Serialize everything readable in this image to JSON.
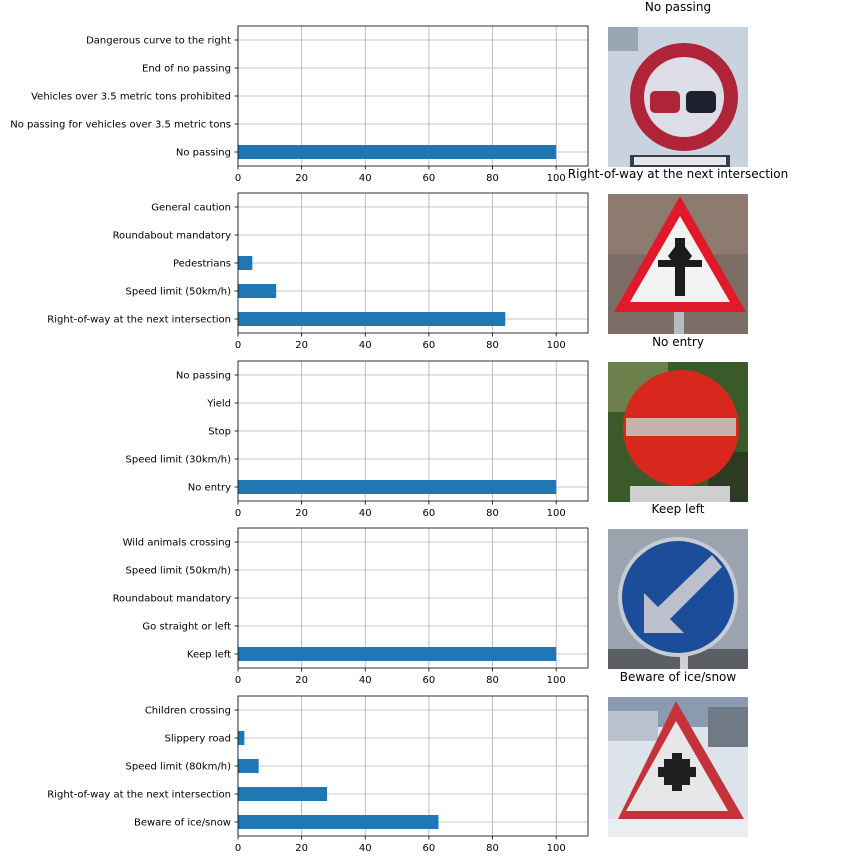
{
  "chart_data": [
    {
      "type": "bar",
      "orientation": "horizontal",
      "title": "No passing",
      "categories": [
        "No passing",
        "No passing for vehicles over 3.5 metric tons",
        "Vehicles over 3.5 metric tons prohibited",
        "End of no passing",
        "Dangerous curve to the right"
      ],
      "values": [
        100,
        0,
        0,
        0,
        0
      ],
      "xlim": [
        0,
        110
      ],
      "xticks": [
        "0",
        "20",
        "40",
        "60",
        "80",
        "100"
      ],
      "grid": true,
      "bar_color": "#1f77b4",
      "sign_icon": "no-passing-sign"
    },
    {
      "type": "bar",
      "orientation": "horizontal",
      "title": "Right-of-way at the next intersection",
      "categories": [
        "Right-of-way at the next intersection",
        "Speed limit (50km/h)",
        "Pedestrians",
        "Roundabout mandatory",
        "General caution"
      ],
      "values": [
        84,
        12,
        4.5,
        0,
        0
      ],
      "xlim": [
        0,
        110
      ],
      "xticks": [
        "0",
        "20",
        "40",
        "60",
        "80",
        "100"
      ],
      "grid": true,
      "bar_color": "#1f77b4",
      "sign_icon": "right-of-way-sign"
    },
    {
      "type": "bar",
      "orientation": "horizontal",
      "title": "No entry",
      "categories": [
        "No entry",
        "Speed limit (30km/h)",
        "Stop",
        "Yield",
        "No passing"
      ],
      "values": [
        100,
        0,
        0,
        0,
        0
      ],
      "xlim": [
        0,
        110
      ],
      "xticks": [
        "0",
        "20",
        "40",
        "60",
        "80",
        "100"
      ],
      "grid": true,
      "bar_color": "#1f77b4",
      "sign_icon": "no-entry-sign"
    },
    {
      "type": "bar",
      "orientation": "horizontal",
      "title": "Keep left",
      "categories": [
        "Keep left",
        "Go straight or left",
        "Roundabout mandatory",
        "Speed limit (50km/h)",
        "Wild animals crossing"
      ],
      "values": [
        100,
        0,
        0,
        0,
        0
      ],
      "xlim": [
        0,
        110
      ],
      "xticks": [
        "0",
        "20",
        "40",
        "60",
        "80",
        "100"
      ],
      "grid": true,
      "bar_color": "#1f77b4",
      "sign_icon": "keep-left-sign"
    },
    {
      "type": "bar",
      "orientation": "horizontal",
      "title": "Beware of ice/snow",
      "categories": [
        "Beware of ice/snow",
        "Right-of-way at the next intersection",
        "Speed limit (80km/h)",
        "Slippery road",
        "Children crossing"
      ],
      "values": [
        63,
        28,
        6.5,
        2,
        0
      ],
      "xlim": [
        0,
        110
      ],
      "xticks": [
        "0",
        "20",
        "40",
        "60",
        "80",
        "100"
      ],
      "grid": true,
      "bar_color": "#1f77b4",
      "sign_icon": "beware-ice-snow-sign"
    }
  ]
}
